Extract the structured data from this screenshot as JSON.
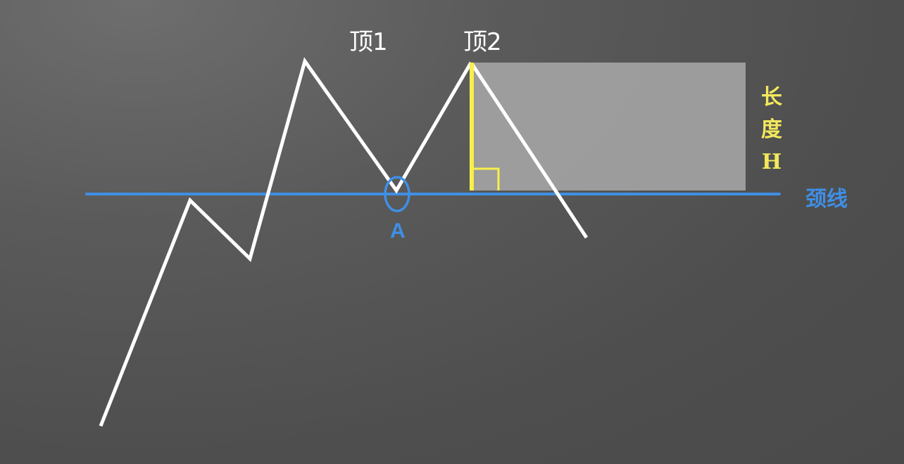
{
  "labels": {
    "top1": "顶1",
    "top2": "顶2",
    "neckline": "颈线",
    "point_a": "A",
    "height_chars": [
      "长",
      "度",
      "H"
    ]
  },
  "colors": {
    "price_line": "#ffffff",
    "neckline": "#3f8fe6",
    "height_marker": "#f7ef4a",
    "height_box": "#a9a9a9"
  }
}
